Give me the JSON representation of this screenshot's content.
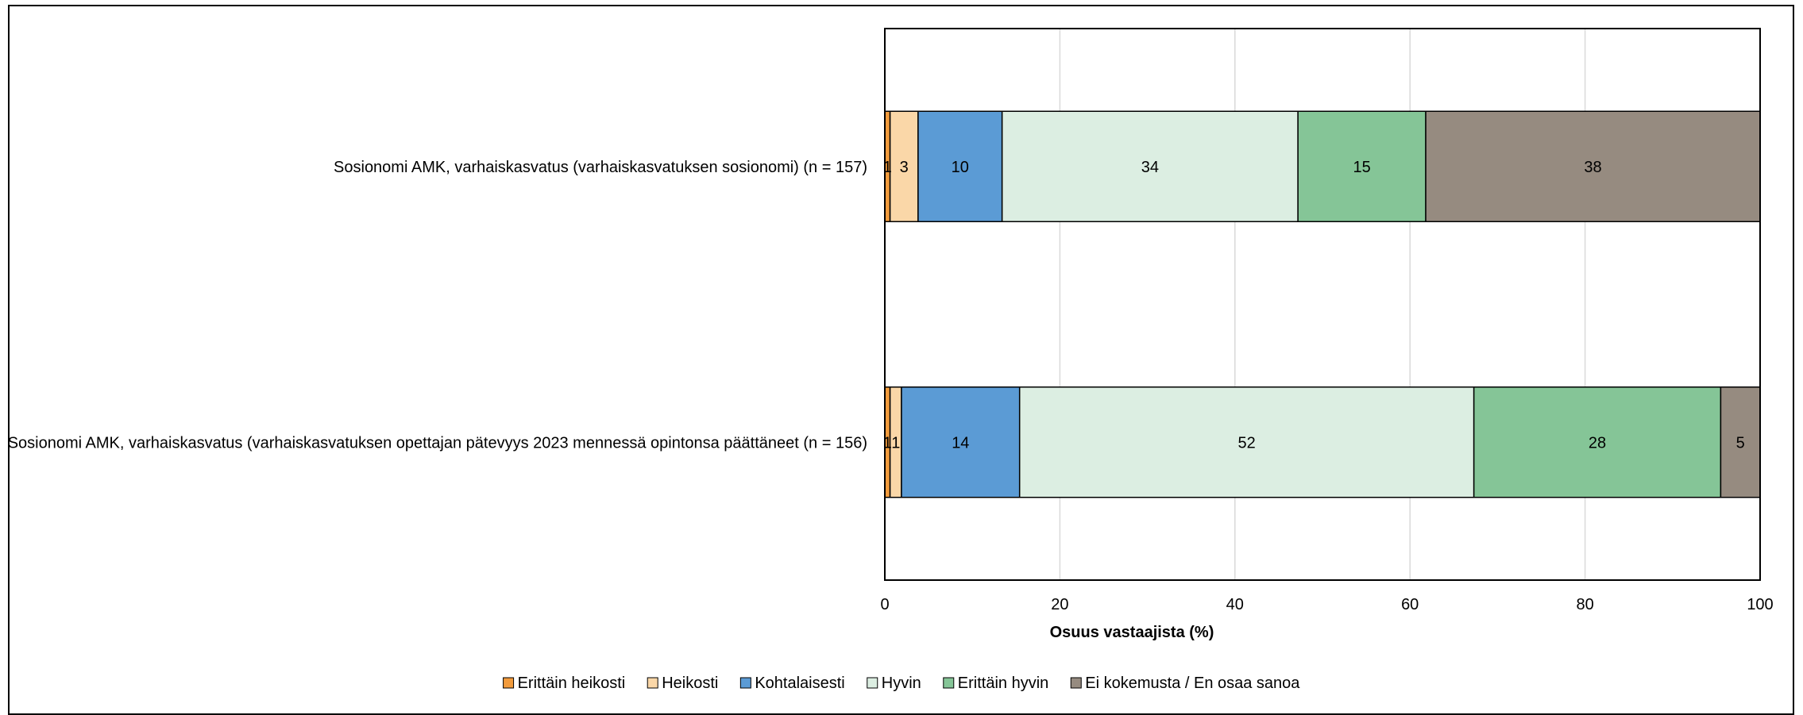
{
  "chart_data": {
    "type": "bar",
    "orientation": "horizontal",
    "stacked": true,
    "title": "",
    "xlabel": "Osuus vastaajista (%)",
    "ylabel": "",
    "xlim": [
      0,
      100
    ],
    "xticks": [
      "0",
      "20",
      "40",
      "60",
      "80",
      "100"
    ],
    "grid": true,
    "legend_position": "bottom",
    "categories": [
      "Sosionomi AMK, varhaiskasvatus (varhaiskasvatuksen sosionomi) (n = 157)",
      "Sosionomi AMK, varhaiskasvatus (varhaiskasvatuksen opettajan pätevyys 2023 mennessä opintonsa päättäneet (n = 156)"
    ],
    "series": [
      {
        "name": "Erittäin heikosti",
        "color": "#F29B3C",
        "values": [
          0.6,
          0.6
        ],
        "labels": [
          "1",
          "1"
        ]
      },
      {
        "name": "Heikosti",
        "color": "#FAD7A8",
        "values": [
          3.2,
          1.3
        ],
        "labels": [
          "3",
          "1"
        ]
      },
      {
        "name": "Kohtalaisesti",
        "color": "#5B9BD5",
        "values": [
          9.6,
          13.5
        ],
        "labels": [
          "10",
          "14"
        ]
      },
      {
        "name": "Hyvin",
        "color": "#DCEEE2",
        "values": [
          33.8,
          51.9
        ],
        "labels": [
          "34",
          "52"
        ]
      },
      {
        "name": "Erittäin hyvin",
        "color": "#85C597",
        "values": [
          14.6,
          28.2
        ],
        "labels": [
          "15",
          "28"
        ]
      },
      {
        "name": "Ei kokemusta / En osaa sanoa",
        "color": "#968B80",
        "values": [
          38.2,
          4.5
        ],
        "labels": [
          "38",
          "5"
        ]
      }
    ]
  }
}
